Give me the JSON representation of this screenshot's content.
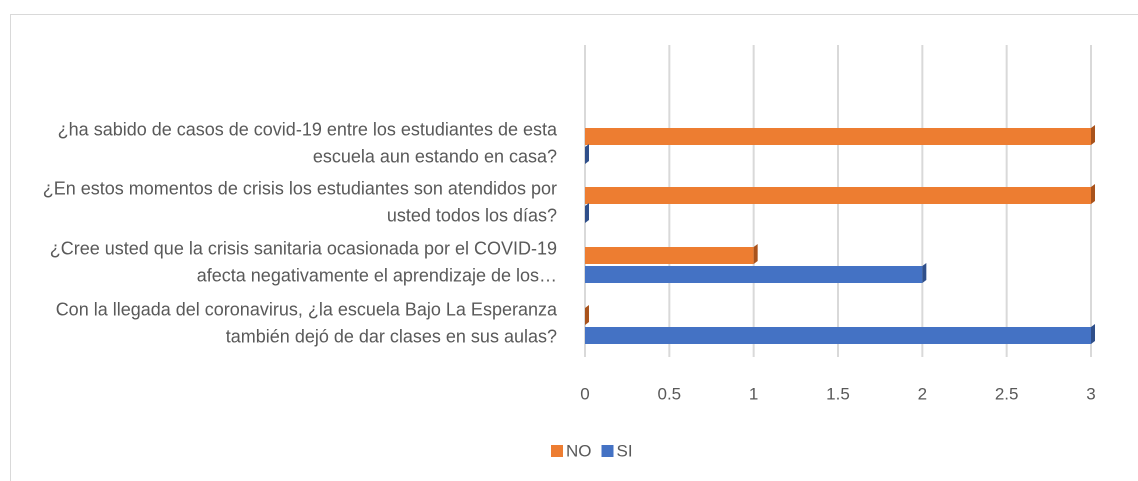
{
  "chart_data": {
    "type": "hbar",
    "categories": [
      "Con la llegada del coronavirus, ¿la escuela Bajo La Esperanza también dejó de dar clases en sus aulas?",
      "¿Cree usted que la crisis sanitaria ocasionada por el COVID-19 afecta negativamente el aprendizaje de los…",
      "¿En estos momentos de crisis los estudiantes son atendidos por usted todos los días?",
      "¿ha sabido de casos de covid-19 entre los estudiantes de esta escuela aun estando en casa?"
    ],
    "series": [
      {
        "name": "NO",
        "color": "#ED7D31",
        "values": [
          0,
          1,
          3,
          3
        ]
      },
      {
        "name": "SI",
        "color": "#4472C4",
        "values": [
          3,
          2,
          0,
          0
        ]
      }
    ],
    "xlim": [
      0,
      3
    ],
    "xticks": [
      0,
      0.5,
      1,
      1.5,
      2,
      2.5,
      3
    ],
    "grid": true,
    "legend": "bottom"
  }
}
